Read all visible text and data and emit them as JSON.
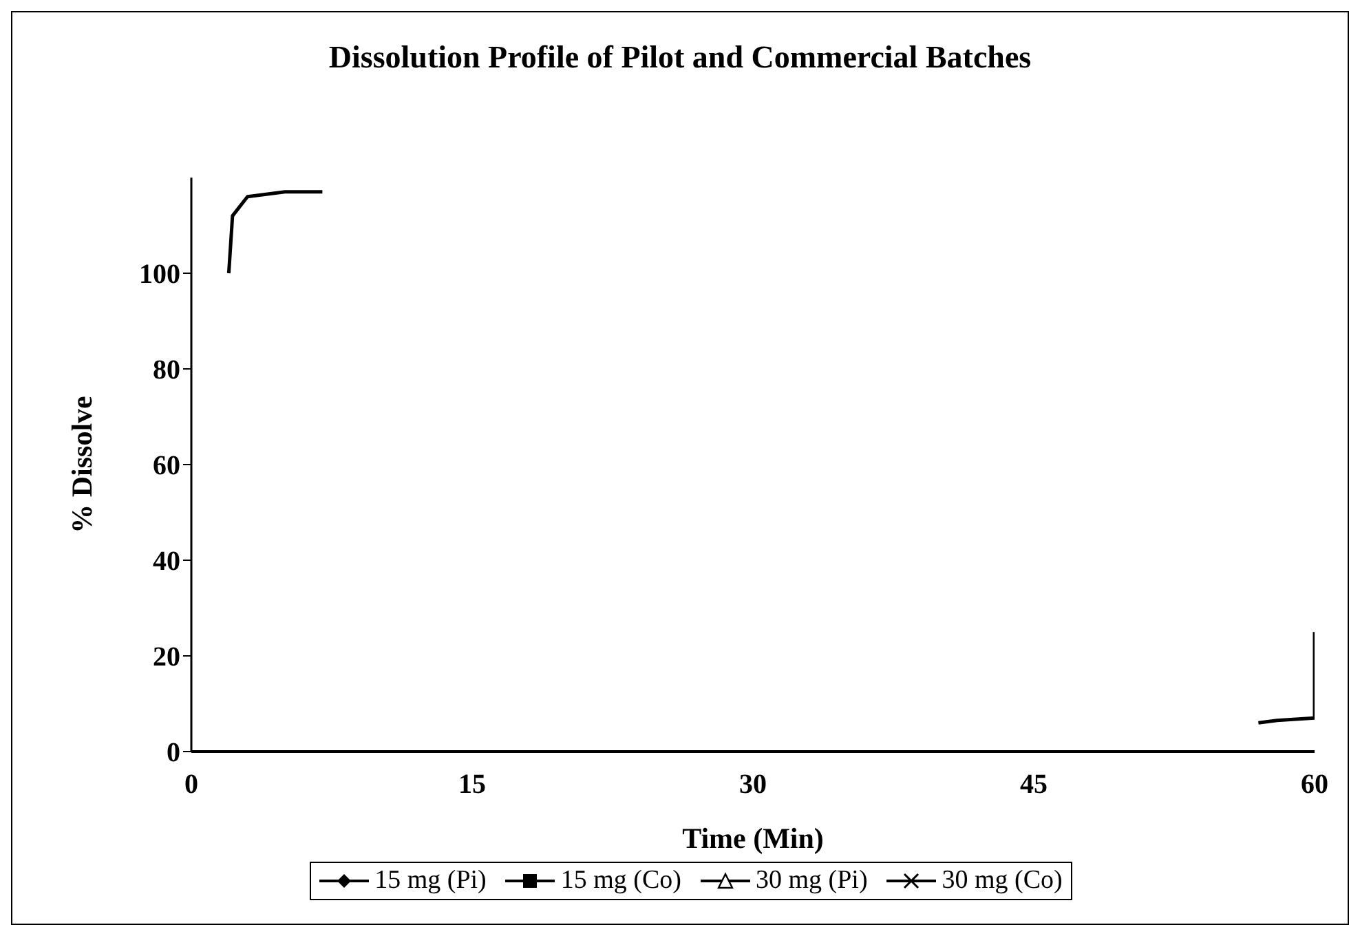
{
  "chart_data": {
    "type": "line",
    "title": "Dissolution Profile of Pilot and Commercial Batches",
    "xlabel": "Time (Min)",
    "ylabel": "% Dissolve",
    "x": [
      2,
      2.2,
      3,
      5,
      7
    ],
    "xlim": [
      0,
      60
    ],
    "xticks": [
      0,
      15,
      30,
      45,
      60
    ],
    "ylim": [
      0,
      120
    ],
    "yticks": [
      0,
      20,
      40,
      60,
      80,
      100
    ],
    "grid": false,
    "legend": "bottom",
    "series": [
      {
        "name": "15 mg (Pi)",
        "color": "#000000",
        "marker": "diamond",
        "values": [
          null,
          null,
          null,
          null,
          null
        ]
      },
      {
        "name": "15 mg (Co)",
        "color": "#000000",
        "marker": "square",
        "values": [
          null,
          null,
          null,
          null,
          null
        ]
      },
      {
        "name": "30 mg (Pi)",
        "color": "#000000",
        "marker": "triangle",
        "values": [
          null,
          null,
          null,
          null,
          null
        ]
      },
      {
        "name": "30 mg (Co)",
        "color": "#000000",
        "marker": "cross",
        "values": [
          null,
          null,
          null,
          null,
          null
        ]
      },
      {
        "color": "#000000",
        "marker": "none",
        "values": [
          100,
          112,
          116,
          117,
          117
        ]
      },
      {
        "color": "#000000",
        "marker": "none",
        "x": [
          57,
          58,
          60,
          60
        ],
        "values": [
          6,
          6.5,
          7,
          25
        ]
      }
    ]
  }
}
